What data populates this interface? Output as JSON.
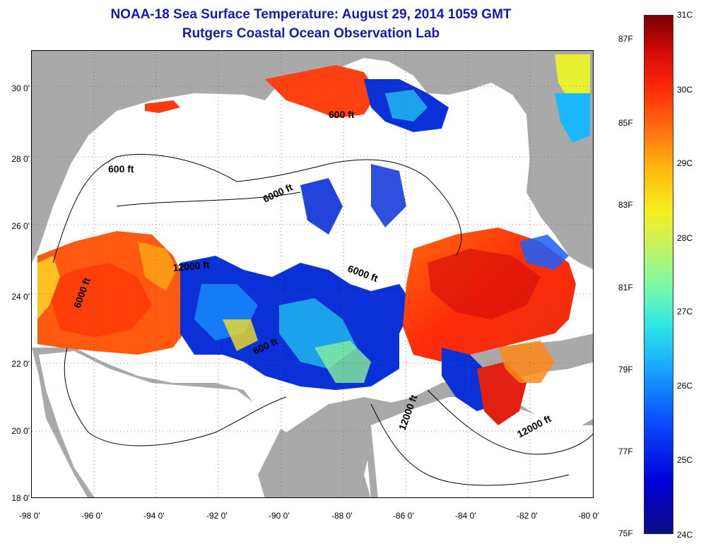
{
  "title": "NOAA-18 Sea Surface Temperature:  August 29, 2014 1059 GMT",
  "subtitle": "Rutgers Coastal Ocean Observation Lab",
  "map": {
    "lat_ticks": [
      "30 0'",
      "28 0'",
      "26 0'",
      "24 0'",
      "22 0'",
      "20 0'",
      "18 0'"
    ],
    "lon_ticks": [
      "-98 0'",
      "-96 0'",
      "-94 0'",
      "-92 0'",
      "-90 0'",
      "-88 0'",
      "-86 0'",
      "-84 0'",
      "-82 0'",
      "-80 0'"
    ],
    "contour_labels": [
      "600 ft",
      "600 ft",
      "6000 ft",
      "6000 ft",
      "12000 ft",
      "6000 ft",
      "600 ft",
      "12000 ft",
      "12000 ft"
    ],
    "colors": {
      "land": "#a9a9a9",
      "cloud": "#ffffff",
      "contour": "#000000"
    }
  },
  "colorbar": {
    "fahrenheit_labels": [
      "87F",
      "85F",
      "83F",
      "81F",
      "79F",
      "77F",
      "75F"
    ],
    "celsius_labels": [
      "31C",
      "30C",
      "29C",
      "28C",
      "27C",
      "26C",
      "25C",
      "24C"
    ]
  }
}
